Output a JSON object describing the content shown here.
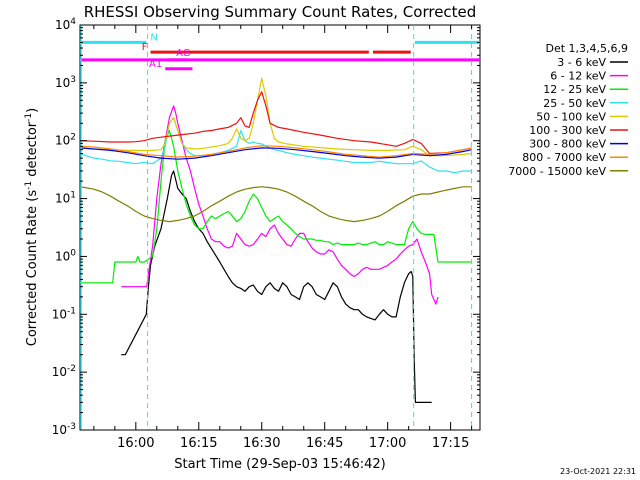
{
  "chart_data": {
    "type": "line",
    "title": "RHESSI Observing Summary Count Rates, Corrected",
    "xlabel": "Start Time (29-Sep-03 15:46:42)",
    "ylabel": "Corrected Count Rate (s⁻¹ detector⁻¹)",
    "ylabel_parts": [
      "Corrected Count Rate (s",
      "-1",
      " detector",
      "-1",
      ")"
    ],
    "x_ticks": [
      "16:00",
      "16:15",
      "16:30",
      "16:45",
      "17:00",
      "17:15"
    ],
    "x_tick_minutes": [
      0,
      15,
      30,
      45,
      60,
      75
    ],
    "xlim_minutes": [
      -13.3,
      82
    ],
    "y_scale": "log",
    "ylim": [
      0.001,
      10000
    ],
    "y_ticks": [
      {
        "base": "10",
        "exp": "-3",
        "value": 0.001
      },
      {
        "base": "10",
        "exp": "-2",
        "value": 0.01
      },
      {
        "base": "10",
        "exp": "-1",
        "value": 0.1
      },
      {
        "base": "10",
        "exp": "0",
        "value": 1
      },
      {
        "base": "10",
        "exp": "1",
        "value": 10
      },
      {
        "base": "10",
        "exp": "2",
        "value": 100
      },
      {
        "base": "10",
        "exp": "3",
        "value": 1000
      },
      {
        "base": "10",
        "exp": "4",
        "value": 10000
      }
    ],
    "legend_title": "Det 1,3,4,5,6,9",
    "legend_position": "right",
    "timestamp": "23-Oct-2021 22:31",
    "flags": [
      {
        "label": "N",
        "color": "#33e0ee",
        "y": 5000,
        "segments": [
          [
            -13.3,
            2.5
          ],
          [
            66.5,
            82
          ]
        ]
      },
      {
        "label": "F",
        "color": "#ee1111",
        "y": 3400,
        "segments": [
          [
            3.5,
            55.5
          ],
          [
            56.5,
            65.5
          ]
        ]
      },
      {
        "label": "AG",
        "color": "#ff00ff",
        "y": 2500,
        "segments": [
          [
            7.5,
            12.5
          ]
        ]
      },
      {
        "label": "",
        "color": "#ff00ff",
        "y": 2500,
        "segments": [
          [
            -13.3,
            82
          ]
        ]
      },
      {
        "label": "A1",
        "color": "#ff00ff",
        "y": 1750,
        "segments": [
          [
            7.0,
            13.5
          ]
        ]
      }
    ],
    "dashed_lines_minutes": [
      2.8,
      66.2,
      80.0
    ],
    "series": [
      {
        "name": "3 - 6 keV",
        "color": "#000000",
        "x": [
          -3.5,
          -2.5,
          2.5,
          3.0,
          3.5,
          4.5,
          6.0,
          7.5,
          8.5,
          9.0,
          10.0,
          11.0,
          12.0,
          13.0,
          14.0,
          15.0,
          16.0,
          17.0,
          18.5,
          20.0,
          21.0,
          22.0,
          23.0,
          24.0,
          25.0,
          26.0,
          27.0,
          28.0,
          29.0,
          30.0,
          31.0,
          32.0,
          33.0,
          34.0,
          35.0,
          36.0,
          37.0,
          38.0,
          39.0,
          40.0,
          41.0,
          42.0,
          43.0,
          44.0,
          45.0,
          46.0,
          47.0,
          48.0,
          49.0,
          50.0,
          51.0,
          52.0,
          53.0,
          54.0,
          55.0,
          56.0,
          57.0,
          58.0,
          59.0,
          60.0,
          61.0,
          62.0,
          63.0,
          64.0,
          65.0,
          65.6,
          66.0,
          66.3,
          66.6,
          67.0,
          69.0,
          70.5
        ],
        "y": [
          0.02,
          0.02,
          0.1,
          0.3,
          0.7,
          1.5,
          3.0,
          10.0,
          25.0,
          30.0,
          15.0,
          12.0,
          10.0,
          6.0,
          4.0,
          3.0,
          2.5,
          1.8,
          1.2,
          0.8,
          0.6,
          0.45,
          0.35,
          0.3,
          0.28,
          0.25,
          0.3,
          0.32,
          0.25,
          0.22,
          0.3,
          0.35,
          0.28,
          0.25,
          0.35,
          0.3,
          0.22,
          0.2,
          0.18,
          0.3,
          0.35,
          0.3,
          0.22,
          0.2,
          0.18,
          0.25,
          0.35,
          0.3,
          0.2,
          0.15,
          0.13,
          0.12,
          0.12,
          0.1,
          0.09,
          0.085,
          0.08,
          0.1,
          0.12,
          0.1,
          0.09,
          0.09,
          0.2,
          0.35,
          0.5,
          0.55,
          0.45,
          0.02,
          0.003,
          0.003,
          0.003,
          0.003
        ]
      },
      {
        "name": "6 - 12 keV",
        "color": "#ff00ff",
        "x": [
          -3.5,
          1.5,
          2.2,
          2.6,
          3.0,
          4.0,
          5.0,
          6.0,
          7.0,
          8.0,
          9.0,
          9.5,
          10.0,
          11.0,
          12.0,
          13.0,
          14.0,
          15.0,
          16.0,
          17.0,
          18.0,
          19.0,
          20.0,
          21.0,
          22.0,
          23.0,
          24.0,
          25.0,
          26.0,
          27.0,
          28.0,
          29.0,
          30.0,
          31.0,
          32.0,
          33.0,
          34.0,
          35.0,
          36.0,
          37.0,
          38.0,
          39.0,
          40.0,
          41.0,
          42.0,
          43.0,
          44.0,
          45.0,
          46.0,
          47.0,
          48.0,
          49.0,
          50.0,
          51.0,
          52.0,
          53.0,
          54.0,
          55.0,
          56.0,
          57.0,
          58.0,
          59.0,
          60.0,
          61.0,
          62.0,
          63.0,
          64.0,
          65.0,
          66.0,
          67.0,
          68.0,
          69.0,
          70.0,
          70.5,
          71.5,
          72.0
        ],
        "y": [
          0.3,
          0.3,
          0.3,
          0.3,
          0.5,
          1.5,
          10.0,
          40.0,
          100.0,
          250.0,
          400.0,
          300.0,
          200.0,
          100.0,
          50.0,
          30.0,
          15.0,
          8.0,
          5.0,
          3.0,
          2.0,
          1.8,
          1.8,
          1.5,
          1.4,
          1.5,
          2.5,
          2.0,
          1.6,
          1.5,
          1.6,
          2.0,
          2.5,
          2.2,
          3.0,
          3.5,
          2.5,
          2.0,
          1.6,
          1.5,
          2.0,
          2.5,
          2.5,
          1.8,
          1.4,
          1.2,
          1.1,
          1.1,
          1.3,
          1.2,
          0.9,
          0.7,
          0.6,
          0.5,
          0.45,
          0.5,
          0.6,
          0.65,
          0.6,
          0.6,
          0.6,
          0.65,
          0.7,
          0.8,
          0.9,
          1.1,
          1.3,
          1.5,
          1.6,
          2.0,
          1.2,
          0.8,
          0.5,
          0.22,
          0.15,
          0.2
        ]
      },
      {
        "name": "12 - 25 keV",
        "color": "#00ee00",
        "x": [
          -13.3,
          -6.0,
          -5.5,
          -5.0,
          0.0,
          0.5,
          1.0,
          2.0,
          3.0,
          4.0,
          5.0,
          6.0,
          7.0,
          8.0,
          9.0,
          10.0,
          11.0,
          12.0,
          13.0,
          14.0,
          15.0,
          16.0,
          17.0,
          18.0,
          19.0,
          20.0,
          21.0,
          22.0,
          23.0,
          24.0,
          25.0,
          26.0,
          27.0,
          28.0,
          29.0,
          30.0,
          31.0,
          32.0,
          33.0,
          34.0,
          35.0,
          36.0,
          37.0,
          38.0,
          39.0,
          40.0,
          41.0,
          42.0,
          43.0,
          44.0,
          45.0,
          46.0,
          47.0,
          48.0,
          49.0,
          50.0,
          51.0,
          52.0,
          53.0,
          54.0,
          55.0,
          56.0,
          57.0,
          58.0,
          59.0,
          60.0,
          61.0,
          62.0,
          63.0,
          64.0,
          65.0,
          66.0,
          67.0,
          68.0,
          69.0,
          70.0,
          71.0,
          72.0,
          73.0,
          74.0,
          75.0,
          76.0,
          77.0,
          78.0,
          79.0,
          80.0
        ],
        "y": [
          0.35,
          0.35,
          0.35,
          0.8,
          0.8,
          1.0,
          0.8,
          0.8,
          0.9,
          1.0,
          3.0,
          20.0,
          100.0,
          150.0,
          80.0,
          30.0,
          15.0,
          8.0,
          5.0,
          3.5,
          3.0,
          3.0,
          4.0,
          5.0,
          4.5,
          5.0,
          5.5,
          6.0,
          5.0,
          4.0,
          4.5,
          6.0,
          9.0,
          12.0,
          10.0,
          7.0,
          5.0,
          4.0,
          4.5,
          5.0,
          4.0,
          3.5,
          3.0,
          2.5,
          2.2,
          2.0,
          2.0,
          2.0,
          1.9,
          1.9,
          1.8,
          1.8,
          1.6,
          1.7,
          1.6,
          1.6,
          1.6,
          1.6,
          1.7,
          1.6,
          1.6,
          1.7,
          1.8,
          1.6,
          1.6,
          1.8,
          1.7,
          1.6,
          1.6,
          1.6,
          3.0,
          4.0,
          3.0,
          2.5,
          2.4,
          2.4,
          2.4,
          0.8,
          0.8,
          0.8,
          0.8,
          0.8,
          0.8,
          0.8,
          0.8,
          0.8
        ]
      },
      {
        "name": "25 - 50 keV",
        "color": "#33e0ee",
        "x": [
          -13.3,
          -12.0,
          -10.0,
          -8.0,
          -6.0,
          -4.0,
          -2.0,
          0.0,
          2.0,
          4.0,
          6.0,
          7.0,
          8.0,
          9.0,
          10.0,
          11.0,
          12.0,
          13.0,
          14.0,
          15.0,
          16.0,
          17.0,
          18.0,
          20.0,
          22.0,
          24.0,
          25.0,
          26.0,
          27.0,
          28.0,
          29.0,
          30.0,
          31.0,
          32.0,
          33.0,
          34.0,
          35.0,
          36.0,
          38.0,
          40.0,
          42.0,
          44.0,
          46.0,
          48.0,
          50.0,
          52.0,
          54.0,
          56.0,
          58.0,
          60.0,
          62.0,
          64.0,
          66.0,
          68.0,
          70.0,
          72.0,
          74.0,
          76.0,
          78.0,
          80.0
        ],
        "y": [
          60.0,
          55.0,
          50.0,
          48.0,
          45.0,
          44.0,
          42.0,
          40.0,
          42.0,
          40.0,
          50.0,
          80.0,
          200.0,
          250.0,
          150.0,
          90.0,
          70.0,
          60.0,
          55.0,
          55.0,
          55.0,
          55.0,
          58.0,
          62.0,
          68.0,
          80.0,
          150.0,
          100.0,
          90.0,
          95.0,
          90.0,
          88.0,
          80.0,
          75.0,
          70.0,
          68.0,
          65.0,
          62.0,
          58.0,
          55.0,
          52.0,
          50.0,
          48.0,
          46.0,
          44.0,
          42.0,
          42.0,
          42.0,
          44.0,
          42.0,
          40.0,
          40.0,
          40.0,
          45.0,
          35.0,
          30.0,
          30.0,
          28.0,
          30.0,
          30.0
        ]
      },
      {
        "name": "50 - 100 keV",
        "color": "#ddcc00",
        "x": [
          -13.3,
          -10.0,
          -6.0,
          -2.0,
          0.0,
          2.0,
          4.0,
          6.0,
          7.0,
          8.0,
          9.0,
          10.0,
          11.0,
          12.0,
          14.0,
          16.0,
          18.0,
          20.0,
          22.0,
          23.0,
          24.0,
          25.0,
          26.0,
          27.0,
          28.0,
          29.0,
          30.0,
          31.0,
          32.0,
          33.0,
          34.0,
          36.0,
          40.0,
          44.0,
          48.0,
          52.0,
          56.0,
          60.0,
          64.0,
          66.0,
          68.0,
          70.0,
          74.0,
          78.0,
          80.0
        ],
        "y": [
          75.0,
          72.0,
          70.0,
          68.0,
          68.0,
          68.0,
          68.0,
          70.0,
          90.0,
          200.0,
          250.0,
          150.0,
          90.0,
          75.0,
          72.0,
          74.0,
          78.0,
          82.0,
          90.0,
          110.0,
          160.0,
          110.0,
          100.0,
          110.0,
          200.0,
          500.0,
          1200.0,
          600.0,
          200.0,
          110.0,
          95.0,
          88.0,
          80.0,
          76.0,
          72.0,
          70.0,
          68.0,
          68.0,
          70.0,
          80.0,
          70.0,
          55.0,
          55.0,
          58.0,
          60.0
        ]
      },
      {
        "name": "100 - 300 keV",
        "color": "#ee1111",
        "x": [
          -13.3,
          -10.0,
          -6.0,
          -2.0,
          0.0,
          2.0,
          4.0,
          6.0,
          8.0,
          10.0,
          12.0,
          14.0,
          16.0,
          18.0,
          20.0,
          22.0,
          24.0,
          25.0,
          26.0,
          27.0,
          28.0,
          29.0,
          30.0,
          31.0,
          32.0,
          34.0,
          36.0,
          40.0,
          44.0,
          48.0,
          52.0,
          56.0,
          58.0,
          60.0,
          62.0,
          64.0,
          66.0,
          68.0,
          70.0,
          74.0,
          78.0,
          80.0
        ],
        "y": [
          100.0,
          98.0,
          95.0,
          95.0,
          96.0,
          100.0,
          110.0,
          115.0,
          120.0,
          125.0,
          130.0,
          135.0,
          145.0,
          150.0,
          160.0,
          170.0,
          200.0,
          250.0,
          180.0,
          170.0,
          300.0,
          500.0,
          700.0,
          400.0,
          200.0,
          170.0,
          160.0,
          140.0,
          125.0,
          110.0,
          100.0,
          95.0,
          90.0,
          85.0,
          80.0,
          90.0,
          105.0,
          90.0,
          60.0,
          62.0,
          70.0,
          75.0
        ]
      },
      {
        "name": "300 - 800 keV",
        "color": "#0000ee",
        "x": [
          -13.3,
          -10.0,
          -6.0,
          -2.0,
          2.0,
          6.0,
          10.0,
          14.0,
          18.0,
          22.0,
          26.0,
          30.0,
          34.0,
          38.0,
          42.0,
          46.0,
          50.0,
          54.0,
          58.0,
          62.0,
          66.0,
          70.0,
          74.0,
          78.0,
          80.0
        ],
        "y": [
          75.0,
          72.0,
          68.0,
          62.0,
          55.0,
          50.0,
          48.0,
          50.0,
          55.0,
          62.0,
          70.0,
          75.0,
          74.0,
          70.0,
          65.0,
          60.0,
          55.0,
          52.0,
          50.0,
          52.0,
          58.0,
          55.0,
          58.0,
          65.0,
          70.0
        ]
      },
      {
        "name": "800 - 7000 keV",
        "color": "#ff8800",
        "x": [
          -13.3,
          -10.0,
          -6.0,
          -2.0,
          2.0,
          6.0,
          10.0,
          14.0,
          18.0,
          22.0,
          26.0,
          30.0,
          34.0,
          38.0,
          42.0,
          46.0,
          50.0,
          54.0,
          58.0,
          62.0,
          66.0,
          70.0,
          74.0,
          78.0,
          80.0
        ],
        "y": [
          80.0,
          78.0,
          72.0,
          65.0,
          58.0,
          55.0,
          52.0,
          54.0,
          58.0,
          65.0,
          75.0,
          82.0,
          80.0,
          75.0,
          70.0,
          64.0,
          58.0,
          55.0,
          52.0,
          55.0,
          60.0,
          58.0,
          62.0,
          70.0,
          75.0
        ]
      },
      {
        "name": "7000 - 15000 keV",
        "color": "#808000",
        "x": [
          -13.3,
          -12.0,
          -10.0,
          -8.0,
          -6.0,
          -4.0,
          -2.0,
          0.0,
          2.0,
          4.0,
          6.0,
          8.0,
          10.0,
          12.0,
          14.0,
          16.0,
          18.0,
          20.0,
          22.0,
          24.0,
          26.0,
          28.0,
          30.0,
          32.0,
          34.0,
          36.0,
          38.0,
          40.0,
          42.0,
          44.0,
          46.0,
          48.0,
          50.0,
          52.0,
          54.0,
          56.0,
          58.0,
          60.0,
          62.0,
          64.0,
          66.0,
          68.0,
          70.0,
          72.0,
          74.0,
          76.0,
          78.0,
          80.0
        ],
        "y": [
          16.0,
          15.5,
          14.5,
          13.0,
          11.0,
          9.0,
          7.5,
          6.0,
          5.0,
          4.5,
          4.2,
          4.0,
          4.2,
          4.5,
          5.0,
          6.0,
          7.5,
          9.0,
          11.0,
          13.0,
          14.5,
          15.5,
          16.0,
          15.5,
          14.5,
          13.0,
          11.0,
          9.0,
          7.5,
          6.0,
          5.0,
          4.5,
          4.2,
          4.0,
          4.2,
          4.5,
          5.0,
          6.0,
          7.5,
          9.0,
          11.0,
          12.0,
          12.0,
          13.0,
          14.0,
          15.0,
          16.0,
          16.0
        ]
      }
    ]
  }
}
